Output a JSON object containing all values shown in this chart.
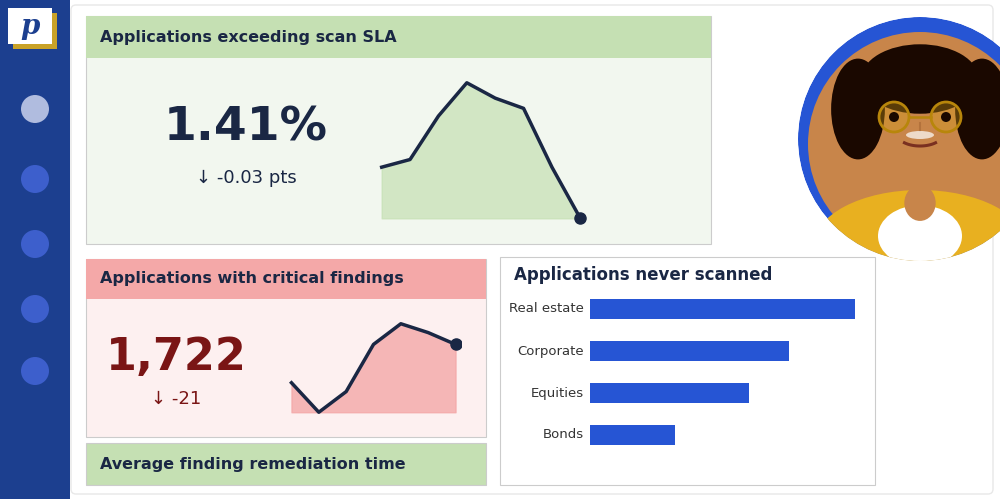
{
  "sidebar_color": "#1c3f8f",
  "logo_text": "p",
  "dot_colors": [
    "#b0bcdf",
    "#3d5fcc",
    "#3d5fcc",
    "#3d5fcc",
    "#3d5fcc"
  ],
  "sla_title": "Applications exceeding scan SLA",
  "sla_header_bg": "#c5e0b3",
  "sla_body_bg": "#f2f7ef",
  "sla_value": "1.41%",
  "sla_delta_text": "↓ -0.03 pts",
  "sla_value_color": "#1a2744",
  "sla_delta_color": "#1a2744",
  "sla_line_x": [
    0,
    1,
    2,
    3,
    4,
    5,
    6,
    7
  ],
  "sla_line_y": [
    2.5,
    2.8,
    4.5,
    5.8,
    5.2,
    4.8,
    2.5,
    0.5
  ],
  "sla_line_color": "#1a2744",
  "sla_fill_color": "#c5e0b3",
  "crit_title": "Applications with critical findings",
  "crit_header_bg": "#f4a8a8",
  "crit_body_bg": "#fdf0f0",
  "crit_value": "1,722",
  "crit_delta_text": "↓ -21",
  "crit_value_color": "#7a1515",
  "crit_delta_color": "#7a1515",
  "crit_line_x": [
    0,
    1,
    2,
    3,
    4,
    5,
    6
  ],
  "crit_line_y": [
    2.5,
    1.5,
    2.2,
    3.8,
    4.5,
    4.2,
    3.8
  ],
  "crit_line_color": "#1a2744",
  "crit_fill_color": "#f4a8a8",
  "never_title": "Applications never scanned",
  "never_categories": [
    "Real estate",
    "Corporate",
    "Equities",
    "Bonds"
  ],
  "never_values": [
    100,
    75,
    60,
    32
  ],
  "never_bar_color": "#2655d4",
  "avg_title": "Average finding remediation time",
  "avg_header_bg": "#c5e0b3",
  "profile_circle_color": "#2655d4",
  "title_fontsize": 11,
  "delta_fontsize": 12,
  "bar_label_fontsize": 9.5
}
